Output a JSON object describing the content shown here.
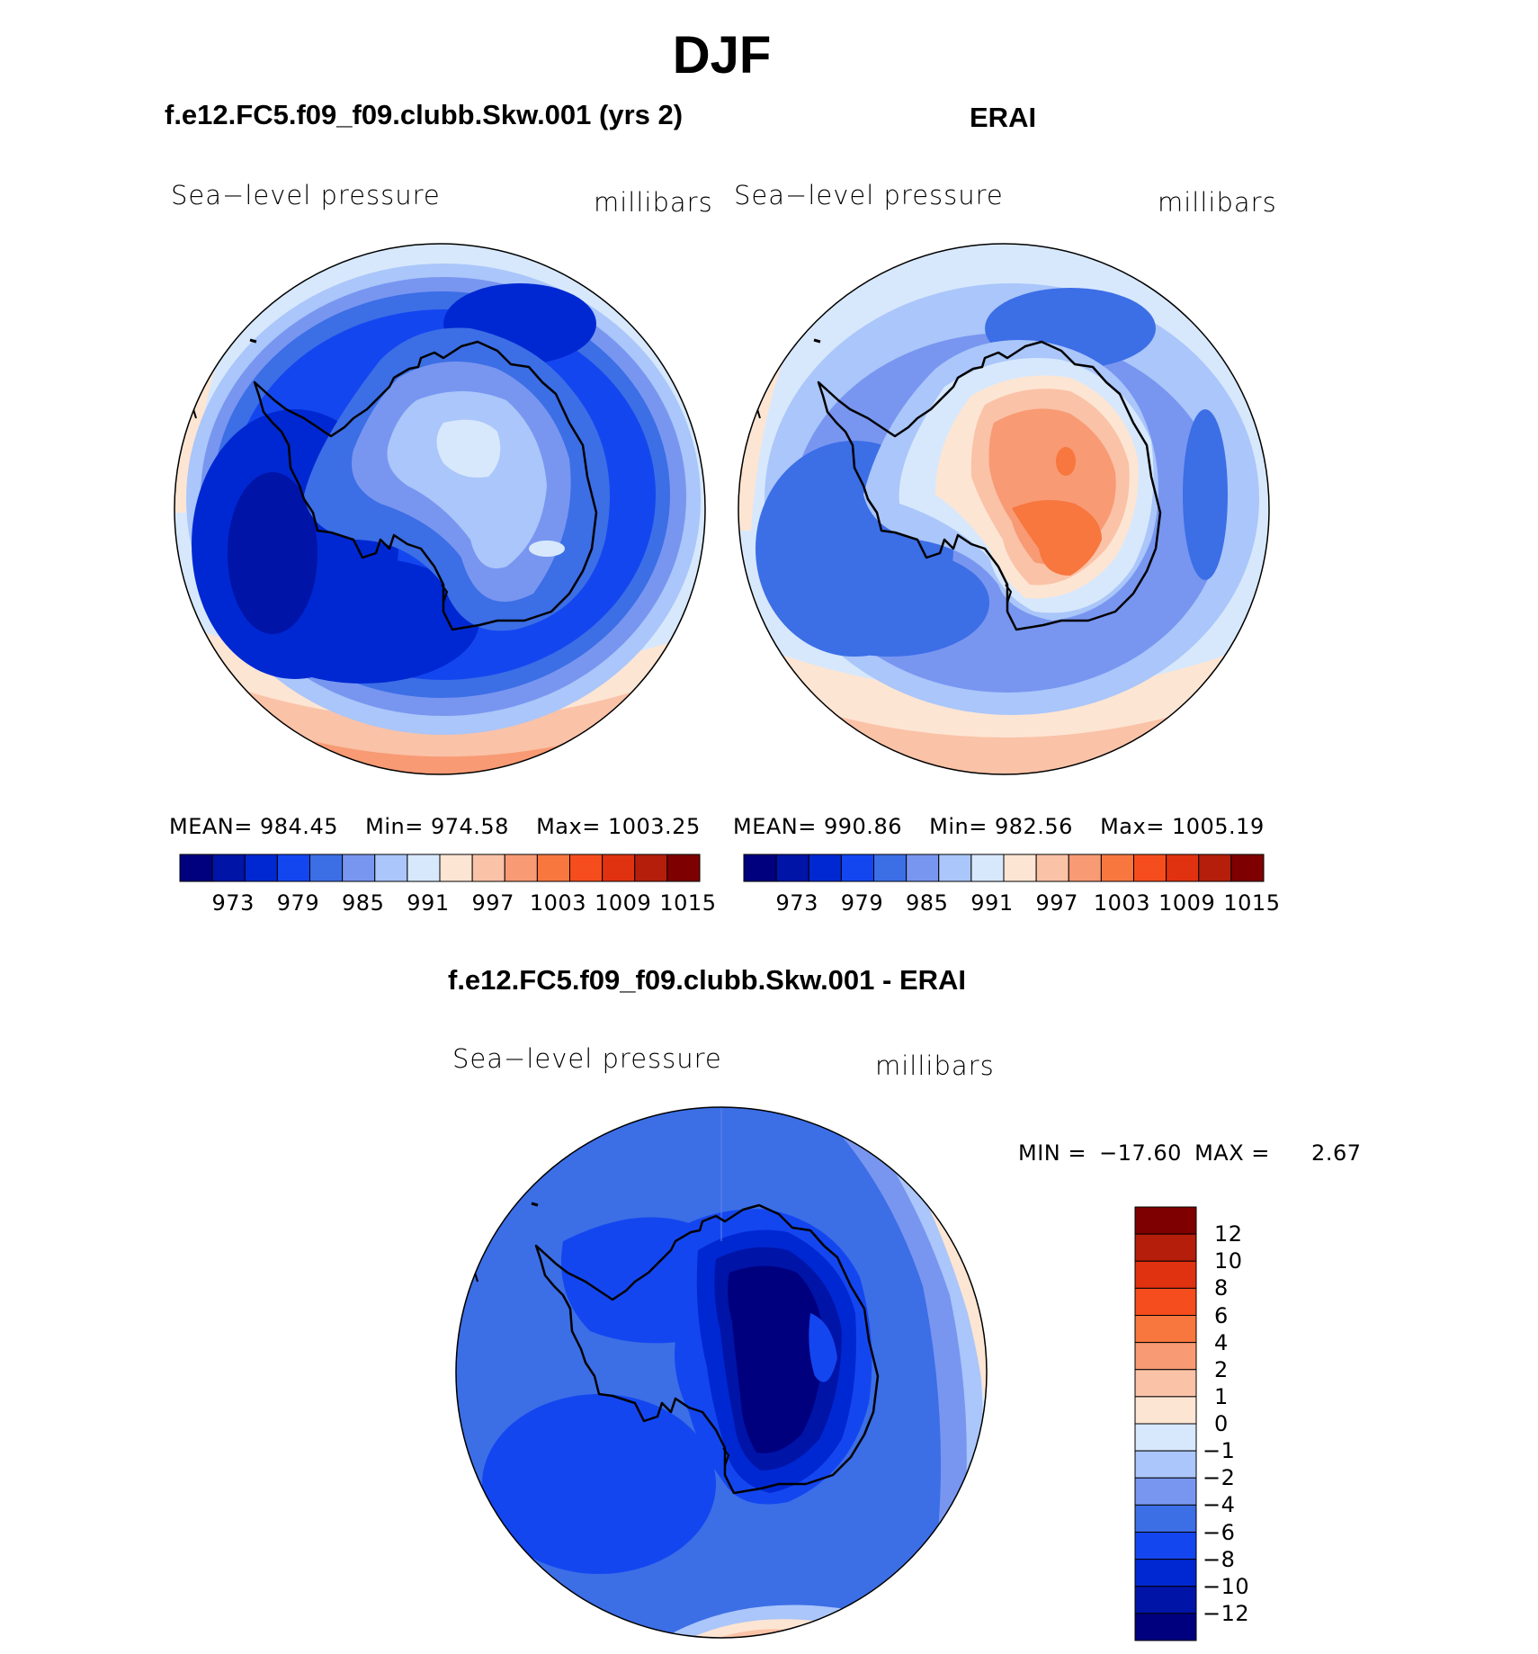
{
  "title": "DJF",
  "panels": [
    {
      "title": "f.e12.FC5.f09_f09.clubb.Skw.001 (yrs 2)",
      "variable": "Sea−level pressure",
      "units": "millibars",
      "stats": {
        "mean_label": "MEAN=",
        "mean": "984.45",
        "min_label": "Min=",
        "min": "974.58",
        "max_label": "Max=",
        "max": "1003.25"
      }
    },
    {
      "title": "ERAI",
      "variable": "Sea−level pressure",
      "units": "millibars",
      "stats": {
        "mean_label": "MEAN=",
        "mean": "990.86",
        "min_label": "Min=",
        "min": "982.56",
        "max_label": "Max=",
        "max": "1005.19"
      }
    },
    {
      "title": "f.e12.FC5.f09_f09.clubb.Skw.001 - ERAI",
      "variable": "Sea−level pressure",
      "units": "millibars",
      "minmax": {
        "min_label": "MIN =",
        "min": "−17.60",
        "max_label": "MAX =",
        "max": "2.67"
      }
    }
  ],
  "colorbar_abs": {
    "colors": [
      "#00007f",
      "#0014a8",
      "#0028d2",
      "#1446f0",
      "#3c6ee6",
      "#7896f0",
      "#aac6fa",
      "#d7e8fc",
      "#fde5d3",
      "#fac2a7",
      "#f89a74",
      "#f7773f",
      "#f54d1d",
      "#e03210",
      "#b41e0a",
      "#7f0000"
    ],
    "tick_labels": [
      "973",
      "979",
      "985",
      "991",
      "997",
      "1003",
      "1009",
      "1015"
    ]
  },
  "colorbar_diff": {
    "colors": [
      "#00007f",
      "#0014a8",
      "#0028d2",
      "#1446f0",
      "#3c6ee6",
      "#7896f0",
      "#aac6fa",
      "#d7e8fc",
      "#fde5d3",
      "#fac2a7",
      "#f89a74",
      "#f7773f",
      "#f54d1d",
      "#e03210",
      "#b41e0a",
      "#7f0000"
    ],
    "tick_labels": [
      "12",
      "10",
      "8",
      "6",
      "4",
      "2",
      "1",
      "0",
      "−1",
      "−2",
      "−4",
      "−6",
      "−8",
      "−10",
      "−12"
    ]
  }
}
